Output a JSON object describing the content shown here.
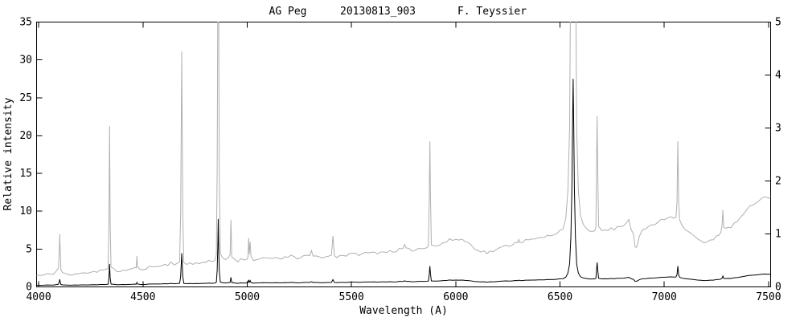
{
  "window": {
    "background": "#ffffff"
  },
  "chart_data": {
    "type": "line",
    "title_parts": [
      "AG Peg",
      "20130813_903",
      "F. Teyssier"
    ],
    "xlabel": "Wavelength (A)",
    "ylabel_left": "Relative intensity",
    "xlim": [
      3990,
      7510
    ],
    "ylim_left": [
      0,
      35
    ],
    "ylim_right": [
      0,
      5
    ],
    "xticks": [
      4000,
      4500,
      5000,
      5500,
      6000,
      6500,
      7000,
      7500
    ],
    "yticks_left": [
      0,
      5,
      10,
      15,
      20,
      25,
      30,
      35
    ],
    "yticks_right": [
      0,
      1,
      2,
      3,
      4,
      5
    ],
    "grid": false,
    "series": [
      {
        "name": "spectrum-black-left-scale",
        "axis": "left",
        "color": "#000000"
      },
      {
        "name": "spectrum-gray-right-scale",
        "axis": "right",
        "color": "#b0b0b0"
      }
    ],
    "points": [
      [
        3990,
        0.21
      ],
      [
        4000,
        0.22
      ],
      [
        4010,
        0.21
      ],
      [
        4025,
        0.22
      ],
      [
        4040,
        0.23
      ],
      [
        4055,
        0.24
      ],
      [
        4070,
        0.26
      ],
      [
        4085,
        0.3
      ],
      [
        4095,
        0.35
      ],
      [
        4099,
        0.7
      ],
      [
        4101,
        1.0
      ],
      [
        4103,
        0.7
      ],
      [
        4107,
        0.32
      ],
      [
        4115,
        0.26
      ],
      [
        4130,
        0.24
      ],
      [
        4145,
        0.25
      ],
      [
        4160,
        0.24
      ],
      [
        4175,
        0.26
      ],
      [
        4190,
        0.25
      ],
      [
        4205,
        0.27
      ],
      [
        4220,
        0.26
      ],
      [
        4235,
        0.28
      ],
      [
        4250,
        0.27
      ],
      [
        4265,
        0.29
      ],
      [
        4280,
        0.28
      ],
      [
        4295,
        0.3
      ],
      [
        4310,
        0.3
      ],
      [
        4325,
        0.32
      ],
      [
        4333,
        0.36
      ],
      [
        4337,
        1.2
      ],
      [
        4340,
        3.05
      ],
      [
        4343,
        1.2
      ],
      [
        4347,
        0.36
      ],
      [
        4360,
        0.32
      ],
      [
        4375,
        0.3
      ],
      [
        4390,
        0.31
      ],
      [
        4405,
        0.3
      ],
      [
        4420,
        0.32
      ],
      [
        4435,
        0.33
      ],
      [
        4450,
        0.34
      ],
      [
        4462,
        0.35
      ],
      [
        4468,
        0.38
      ],
      [
        4471,
        0.56
      ],
      [
        4474,
        0.37
      ],
      [
        4485,
        0.34
      ],
      [
        4500,
        0.35
      ],
      [
        4515,
        0.36
      ],
      [
        4530,
        0.37
      ],
      [
        4545,
        0.38
      ],
      [
        4560,
        0.38
      ],
      [
        4575,
        0.4
      ],
      [
        4590,
        0.4
      ],
      [
        4605,
        0.41
      ],
      [
        4620,
        0.43
      ],
      [
        4635,
        0.46
      ],
      [
        4650,
        0.44
      ],
      [
        4665,
        0.45
      ],
      [
        4676,
        0.47
      ],
      [
        4681,
        1.4
      ],
      [
        4686,
        4.45
      ],
      [
        4691,
        1.4
      ],
      [
        4696,
        0.47
      ],
      [
        4710,
        0.45
      ],
      [
        4725,
        0.44
      ],
      [
        4740,
        0.43
      ],
      [
        4755,
        0.44
      ],
      [
        4770,
        0.45
      ],
      [
        4785,
        0.46
      ],
      [
        4800,
        0.47
      ],
      [
        4815,
        0.48
      ],
      [
        4830,
        0.5
      ],
      [
        4845,
        0.52
      ],
      [
        4852,
        0.6
      ],
      [
        4856,
        2.2
      ],
      [
        4859,
        5.5
      ],
      [
        4861,
        9.0
      ],
      [
        4863,
        5.5
      ],
      [
        4866,
        2.2
      ],
      [
        4871,
        0.62
      ],
      [
        4880,
        0.55
      ],
      [
        4895,
        0.52
      ],
      [
        4910,
        0.53
      ],
      [
        4918,
        0.6
      ],
      [
        4922,
        1.27
      ],
      [
        4926,
        0.58
      ],
      [
        4940,
        0.52
      ],
      [
        4955,
        0.5
      ],
      [
        4970,
        0.51
      ],
      [
        4985,
        0.52
      ],
      [
        5000,
        0.53
      ],
      [
        5004,
        0.6
      ],
      [
        5007,
        0.95
      ],
      [
        5010,
        0.6
      ],
      [
        5014,
        0.85
      ],
      [
        5018,
        0.58
      ],
      [
        5030,
        0.52
      ],
      [
        5045,
        0.51
      ],
      [
        5060,
        0.52
      ],
      [
        5075,
        0.53
      ],
      [
        5090,
        0.52
      ],
      [
        5105,
        0.54
      ],
      [
        5120,
        0.53
      ],
      [
        5135,
        0.55
      ],
      [
        5150,
        0.54
      ],
      [
        5165,
        0.55
      ],
      [
        5180,
        0.56
      ],
      [
        5195,
        0.55
      ],
      [
        5210,
        0.57
      ],
      [
        5225,
        0.56
      ],
      [
        5240,
        0.55
      ],
      [
        5255,
        0.57
      ],
      [
        5270,
        0.58
      ],
      [
        5285,
        0.57
      ],
      [
        5300,
        0.6
      ],
      [
        5308,
        0.66
      ],
      [
        5316,
        0.59
      ],
      [
        5330,
        0.57
      ],
      [
        5345,
        0.56
      ],
      [
        5360,
        0.57
      ],
      [
        5375,
        0.58
      ],
      [
        5390,
        0.57
      ],
      [
        5404,
        0.6
      ],
      [
        5408,
        0.8
      ],
      [
        5411,
        0.98
      ],
      [
        5414,
        0.8
      ],
      [
        5418,
        0.6
      ],
      [
        5430,
        0.58
      ],
      [
        5445,
        0.59
      ],
      [
        5460,
        0.6
      ],
      [
        5475,
        0.6
      ],
      [
        5490,
        0.61
      ],
      [
        5505,
        0.61
      ],
      [
        5520,
        0.62
      ],
      [
        5535,
        0.62
      ],
      [
        5550,
        0.63
      ],
      [
        5565,
        0.63
      ],
      [
        5580,
        0.64
      ],
      [
        5595,
        0.64
      ],
      [
        5610,
        0.65
      ],
      [
        5625,
        0.65
      ],
      [
        5640,
        0.66
      ],
      [
        5655,
        0.66
      ],
      [
        5670,
        0.67
      ],
      [
        5685,
        0.67
      ],
      [
        5700,
        0.68
      ],
      [
        5715,
        0.69
      ],
      [
        5730,
        0.7
      ],
      [
        5748,
        0.72
      ],
      [
        5755,
        0.78
      ],
      [
        5762,
        0.71
      ],
      [
        5775,
        0.7
      ],
      [
        5790,
        0.7
      ],
      [
        5805,
        0.71
      ],
      [
        5820,
        0.72
      ],
      [
        5835,
        0.73
      ],
      [
        5850,
        0.73
      ],
      [
        5862,
        0.74
      ],
      [
        5869,
        0.8
      ],
      [
        5873,
        1.7
      ],
      [
        5876,
        2.75
      ],
      [
        5879,
        1.7
      ],
      [
        5883,
        0.8
      ],
      [
        5895,
        0.76
      ],
      [
        5910,
        0.78
      ],
      [
        5925,
        0.8
      ],
      [
        5940,
        0.83
      ],
      [
        5955,
        0.85
      ],
      [
        5970,
        0.88
      ],
      [
        5985,
        0.89
      ],
      [
        6000,
        0.9
      ],
      [
        6015,
        0.9
      ],
      [
        6030,
        0.89
      ],
      [
        6045,
        0.87
      ],
      [
        6060,
        0.83
      ],
      [
        6075,
        0.78
      ],
      [
        6090,
        0.74
      ],
      [
        6105,
        0.71
      ],
      [
        6120,
        0.68
      ],
      [
        6135,
        0.66
      ],
      [
        6150,
        0.65
      ],
      [
        6165,
        0.66
      ],
      [
        6180,
        0.68
      ],
      [
        6195,
        0.7
      ],
      [
        6210,
        0.72
      ],
      [
        6225,
        0.75
      ],
      [
        6240,
        0.77
      ],
      [
        6255,
        0.79
      ],
      [
        6270,
        0.81
      ],
      [
        6285,
        0.83
      ],
      [
        6297,
        0.85
      ],
      [
        6302,
        0.92
      ],
      [
        6307,
        0.85
      ],
      [
        6320,
        0.86
      ],
      [
        6335,
        0.87
      ],
      [
        6350,
        0.88
      ],
      [
        6365,
        0.89
      ],
      [
        6380,
        0.9
      ],
      [
        6395,
        0.91
      ],
      [
        6410,
        0.92
      ],
      [
        6425,
        0.94
      ],
      [
        6440,
        0.96
      ],
      [
        6455,
        0.98
      ],
      [
        6470,
        1.0
      ],
      [
        6485,
        1.03
      ],
      [
        6500,
        1.06
      ],
      [
        6515,
        1.12
      ],
      [
        6528,
        1.3
      ],
      [
        6538,
        1.8
      ],
      [
        6546,
        3.0
      ],
      [
        6552,
        6.5
      ],
      [
        6557,
        13.0
      ],
      [
        6560,
        21.0
      ],
      [
        6563,
        27.5
      ],
      [
        6566,
        21.0
      ],
      [
        6569,
        13.0
      ],
      [
        6574,
        6.5
      ],
      [
        6580,
        3.0
      ],
      [
        6588,
        1.8
      ],
      [
        6598,
        1.35
      ],
      [
        6612,
        1.15
      ],
      [
        6626,
        1.08
      ],
      [
        6640,
        1.06
      ],
      [
        6654,
        1.05
      ],
      [
        6666,
        1.06
      ],
      [
        6672,
        1.15
      ],
      [
        6675,
        2.2
      ],
      [
        6678,
        3.25
      ],
      [
        6681,
        2.2
      ],
      [
        6685,
        1.12
      ],
      [
        6700,
        1.06
      ],
      [
        6715,
        1.07
      ],
      [
        6730,
        1.08
      ],
      [
        6745,
        1.09
      ],
      [
        6760,
        1.1
      ],
      [
        6775,
        1.12
      ],
      [
        6790,
        1.15
      ],
      [
        6805,
        1.18
      ],
      [
        6820,
        1.22
      ],
      [
        6830,
        1.28
      ],
      [
        6840,
        1.12
      ],
      [
        6852,
        1.0
      ],
      [
        6860,
        0.78
      ],
      [
        6866,
        0.72
      ],
      [
        6872,
        0.8
      ],
      [
        6880,
        0.95
      ],
      [
        6895,
        1.05
      ],
      [
        6910,
        1.1
      ],
      [
        6925,
        1.14
      ],
      [
        6940,
        1.17
      ],
      [
        6955,
        1.19
      ],
      [
        6970,
        1.22
      ],
      [
        6985,
        1.25
      ],
      [
        7000,
        1.28
      ],
      [
        7015,
        1.3
      ],
      [
        7030,
        1.33
      ],
      [
        7045,
        1.32
      ],
      [
        7056,
        1.33
      ],
      [
        7061,
        1.6
      ],
      [
        7065,
        2.78
      ],
      [
        7069,
        1.6
      ],
      [
        7074,
        1.25
      ],
      [
        7085,
        1.18
      ],
      [
        7100,
        1.1
      ],
      [
        7115,
        1.05
      ],
      [
        7130,
        0.99
      ],
      [
        7145,
        0.95
      ],
      [
        7160,
        0.9
      ],
      [
        7175,
        0.86
      ],
      [
        7190,
        0.84
      ],
      [
        7205,
        0.83
      ],
      [
        7220,
        0.86
      ],
      [
        7235,
        0.9
      ],
      [
        7250,
        0.95
      ],
      [
        7262,
        1.0
      ],
      [
        7271,
        1.05
      ],
      [
        7277,
        1.15
      ],
      [
        7281,
        1.44
      ],
      [
        7285,
        1.15
      ],
      [
        7291,
        1.08
      ],
      [
        7305,
        1.1
      ],
      [
        7320,
        1.14
      ],
      [
        7335,
        1.18
      ],
      [
        7350,
        1.24
      ],
      [
        7365,
        1.3
      ],
      [
        7380,
        1.37
      ],
      [
        7395,
        1.44
      ],
      [
        7410,
        1.5
      ],
      [
        7425,
        1.55
      ],
      [
        7440,
        1.6
      ],
      [
        7455,
        1.64
      ],
      [
        7470,
        1.67
      ],
      [
        7485,
        1.69
      ],
      [
        7500,
        1.7
      ],
      [
        7510,
        1.7
      ]
    ]
  },
  "style": {
    "axis_color": "#000000",
    "noise_amplitude": 0.03,
    "noise_seed": 11,
    "tick_length": 7
  }
}
